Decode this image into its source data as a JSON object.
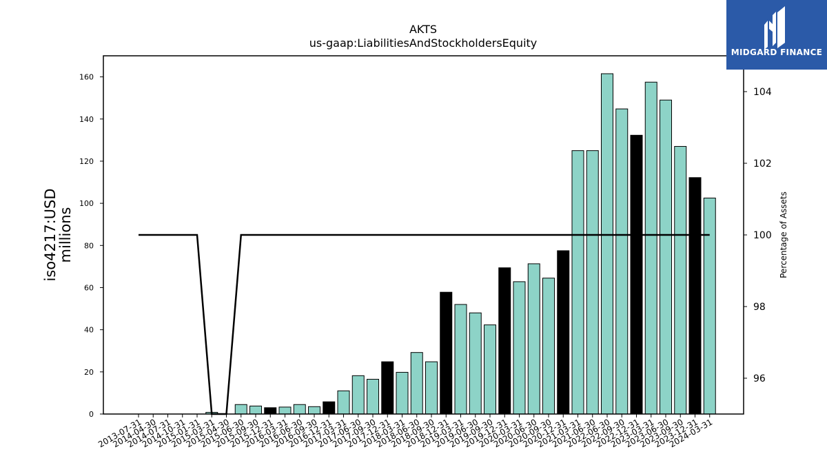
{
  "brand": {
    "name": "MIDGARD FINANCE",
    "color": "#2b5aa8"
  },
  "chart_data": {
    "type": "bar",
    "title": "AKTS",
    "subtitle": "us-gaap:LiabilitiesAndStockholdersEquity",
    "ylabel": "iso4217:USD\nmillions",
    "y2label": "Percentage of Assets",
    "ylim": [
      0,
      170
    ],
    "y2lim": [
      95.0,
      105.0
    ],
    "yticks": [
      0,
      20,
      40,
      60,
      80,
      100,
      120,
      140,
      160
    ],
    "y2ticks": [
      96,
      98,
      100,
      102,
      104
    ],
    "grid": false,
    "colors": {
      "bar": "#8dd3c7",
      "highlight": "#000000",
      "line": "#000000"
    },
    "categories": [
      "2013-07-31",
      "2014-04-30",
      "2014-07-31",
      "2014-10-31",
      "2015-01-31",
      "2015-03-31",
      "2015-04-30",
      "2015-06-30",
      "2015-09-30",
      "2015-12-31",
      "2016-03-31",
      "2016-06-30",
      "2016-09-30",
      "2016-12-31",
      "2017-03-31",
      "2017-06-30",
      "2017-09-30",
      "2017-12-31",
      "2018-03-31",
      "2018-06-30",
      "2018-09-30",
      "2018-12-31",
      "2019-03-31",
      "2019-06-30",
      "2019-09-30",
      "2019-12-31",
      "2020-03-31",
      "2020-06-30",
      "2020-09-30",
      "2020-12-31",
      "2021-03-31",
      "2021-06-30",
      "2022-06-30",
      "2022-09-30",
      "2022-12-31",
      "2023-03-31",
      "2023-06-30",
      "2023-09-30",
      "2023-12-31",
      "2024-03-31"
    ],
    "values": [
      0,
      0,
      0,
      0,
      0,
      0.8,
      0,
      4.5,
      3.8,
      3.0,
      3.3,
      4.5,
      3.5,
      5.8,
      11.0,
      18.2,
      16.5,
      24.8,
      19.8,
      29.2,
      24.8,
      57.8,
      52.0,
      48.0,
      42.3,
      69.4,
      62.8,
      71.3,
      64.5,
      77.5,
      125.0,
      125.0,
      161.5,
      144.8,
      132.3,
      157.5,
      149.0,
      127.0,
      112.2,
      102.5
    ],
    "highlight": [
      9,
      13,
      17,
      21,
      25,
      29,
      34,
      38
    ],
    "series": [
      {
        "values": [
          100,
          100,
          100,
          100,
          100,
          95,
          95,
          100,
          100,
          100,
          100,
          100,
          100,
          100,
          100,
          100,
          100,
          100,
          100,
          100,
          100,
          100,
          100,
          100,
          100,
          100,
          100,
          100,
          100,
          100,
          100,
          100,
          100,
          100,
          100,
          100,
          100,
          100,
          100,
          100
        ],
        "axis": "right",
        "type": "line"
      }
    ]
  }
}
